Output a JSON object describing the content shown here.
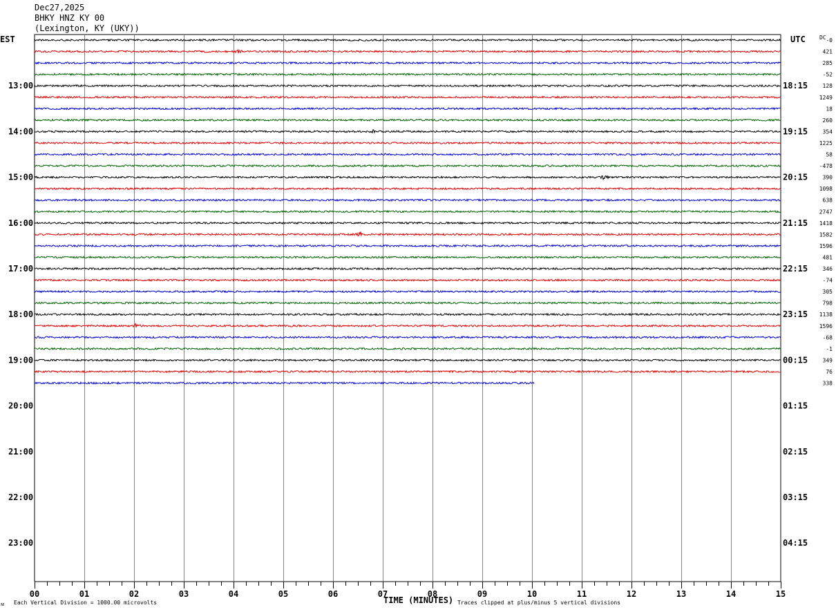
{
  "header": {
    "date": "Dec27,2025",
    "station": "BHKY HNZ KY 00",
    "location": "(Lexington, KY (UKY))"
  },
  "left_tz": "EST",
  "right_tz": "UTC",
  "dc_header": "DC",
  "footer": {
    "scale_note": "Each Vertical Division = 1000.00 microvolts",
    "clip_note": "Traces clipped at plus/minus 5 vertical divisions",
    "corner_mark": "ᴍ"
  },
  "chart_data": {
    "type": "line",
    "xlabel": "TIME (MINUTES)",
    "xlim": [
      0,
      15
    ],
    "x_ticks": [
      "00",
      "01",
      "02",
      "03",
      "04",
      "05",
      "06",
      "07",
      "08",
      "09",
      "10",
      "11",
      "12",
      "13",
      "14",
      "15"
    ],
    "rows_per_hour": 4,
    "total_rows": 48,
    "traces_drawn": 31,
    "last_trace_end_minute": 10.05,
    "trace_colors": [
      "#000000",
      "#e00000",
      "#0000d0",
      "#006400"
    ],
    "left_hour_labels": [
      "13:00",
      "14:00",
      "15:00",
      "16:00",
      "17:00",
      "18:00",
      "19:00",
      "20:00",
      "21:00",
      "22:00",
      "23:00"
    ],
    "right_hour_labels": [
      "18:15",
      "19:15",
      "20:15",
      "21:15",
      "22:15",
      "23:15",
      "00:15",
      "01:15",
      "02:15",
      "03:15",
      "04:15"
    ],
    "dc_offsets": [
      "-0",
      "421",
      "285",
      "-52",
      "128",
      "1249",
      "18",
      "260",
      "354",
      "1225",
      "58",
      "-478",
      "390",
      "1098",
      "638",
      "2747",
      "1418",
      "1582",
      "1596",
      "481",
      "346",
      "-74",
      "305",
      "798",
      "1138",
      "1596",
      "-68",
      "-1",
      "349",
      "76",
      "338"
    ],
    "events": [
      {
        "trace": 12,
        "minute": 11.45,
        "amplitude": 3.0
      },
      {
        "trace": 17,
        "minute": 6.55,
        "amplitude": 3.0
      },
      {
        "trace": 25,
        "minute": 2.05,
        "amplitude": 2.5
      },
      {
        "trace": 25,
        "minute": 10.5,
        "amplitude": 2.0
      },
      {
        "trace": 1,
        "minute": 4.1,
        "amplitude": 1.5
      },
      {
        "trace": 8,
        "minute": 6.8,
        "amplitude": 1.5
      }
    ]
  }
}
